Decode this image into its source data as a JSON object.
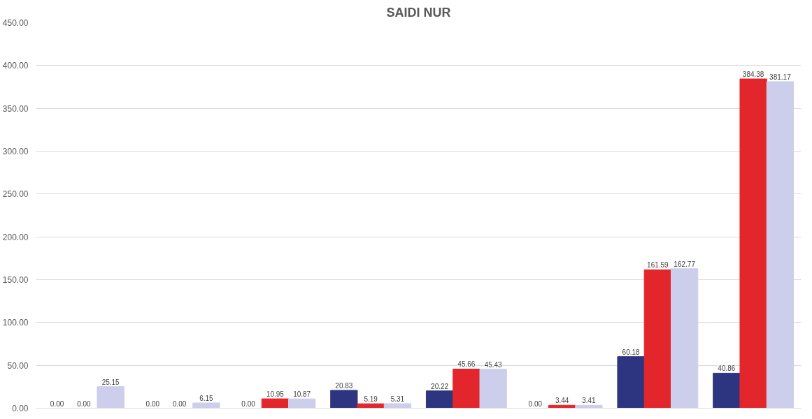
{
  "chart_data": {
    "type": "bar",
    "title": "SAIDI NUR",
    "categories": [
      null,
      null,
      null,
      null,
      null,
      null,
      null,
      null
    ],
    "series": [
      {
        "color": "#2e3580",
        "values": [
          0.0,
          0.0,
          0.0,
          20.83,
          20.22,
          0.0,
          60.18,
          40.86
        ],
        "value_labels": [
          "0.00",
          "0.00",
          "0.00",
          "20.83",
          "20.22",
          "0.00",
          "60.18",
          "40.86"
        ]
      },
      {
        "color": "#e3262c",
        "values": [
          0.0,
          0.0,
          10.95,
          5.19,
          45.66,
          3.44,
          161.59,
          384.38
        ],
        "value_labels": [
          "0.00",
          "0.00",
          "10.95",
          "5.19",
          "45.66",
          "3.44",
          "161.59",
          "384.38"
        ]
      },
      {
        "color": "#ccceec",
        "values": [
          25.15,
          6.15,
          10.87,
          5.31,
          45.43,
          3.41,
          162.77,
          381.17
        ],
        "value_labels": [
          "25.15",
          "6.15",
          "10.87",
          "5.31",
          "45.43",
          "3.41",
          "162.77",
          "381.17"
        ]
      }
    ],
    "ylim": [
      0,
      450
    ],
    "yticks": [
      {
        "value": 0,
        "label": "0.00"
      },
      {
        "value": 50,
        "label": "50.00"
      },
      {
        "value": 100,
        "label": "100.00"
      },
      {
        "value": 150,
        "label": "150.00"
      },
      {
        "value": 200,
        "label": "200.00"
      },
      {
        "value": 250,
        "label": "250.00"
      },
      {
        "value": 300,
        "label": "300.00"
      },
      {
        "value": 350,
        "label": "350.00"
      },
      {
        "value": 400,
        "label": "400.00"
      },
      {
        "value": 450,
        "label": "450.00"
      }
    ],
    "grid": "y",
    "tick_labels": "y"
  }
}
